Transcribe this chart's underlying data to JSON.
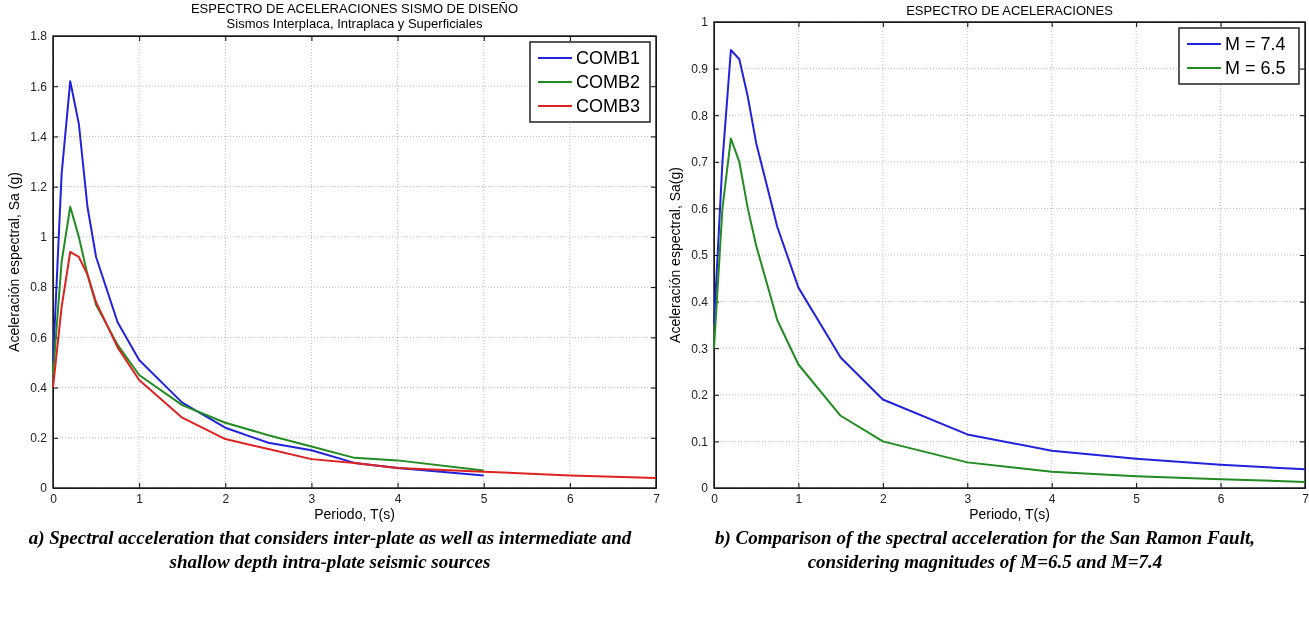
{
  "chart_data": [
    {
      "type": "line",
      "title": "ESPECTRO DE ACELERACIONES SISMO DE DISEÑO",
      "subtitle": "Sismos Interplaca, Intraplaca y Superficiales",
      "xlabel": "Periodo, T(s)",
      "ylabel": "Aceleración espectral, Sa (g)",
      "xlim": [
        0,
        7
      ],
      "xticks": [
        0,
        1,
        2,
        3,
        4,
        5,
        6,
        7
      ],
      "ylim": [
        0,
        1.8
      ],
      "yticks": [
        0,
        0.2,
        0.4,
        0.6,
        0.8,
        1,
        1.2,
        1.4,
        1.6,
        1.8
      ],
      "grid": true,
      "legend": "top right",
      "line_style": "solid",
      "annotations": [
        "a) Spectral acceleration that considers inter-plate as well as intermediate and shallow depth intra-plate seismic sources"
      ],
      "series": [
        {
          "name": "COMB1",
          "color": "#2222dd",
          "x": [
            0,
            0.1,
            0.2,
            0.3,
            0.4,
            0.5,
            0.75,
            1,
            1.5,
            2,
            2.5,
            3,
            3.5,
            4,
            5
          ],
          "values": [
            0.5,
            1.25,
            1.62,
            1.45,
            1.12,
            0.92,
            0.66,
            0.51,
            0.34,
            0.24,
            0.18,
            0.15,
            0.1,
            0.08,
            0.05
          ]
        },
        {
          "name": "COMB2",
          "color": "#228b22",
          "x": [
            0,
            0.1,
            0.2,
            0.3,
            0.4,
            0.5,
            0.75,
            1,
            1.5,
            2,
            2.5,
            3,
            3.5,
            4,
            5
          ],
          "values": [
            0.45,
            0.9,
            1.12,
            1.0,
            0.85,
            0.73,
            0.57,
            0.45,
            0.33,
            0.26,
            0.21,
            0.165,
            0.12,
            0.11,
            0.07
          ]
        },
        {
          "name": "COMB3",
          "color": "#dd2222",
          "x": [
            0,
            0.1,
            0.2,
            0.3,
            0.4,
            0.5,
            0.75,
            1,
            1.5,
            2,
            2.5,
            3,
            3.5,
            4,
            5,
            6,
            7
          ],
          "values": [
            0.4,
            0.72,
            0.94,
            0.92,
            0.85,
            0.74,
            0.56,
            0.43,
            0.28,
            0.195,
            0.155,
            0.115,
            0.1,
            0.08,
            0.065,
            0.05,
            0.04
          ]
        }
      ]
    },
    {
      "type": "line",
      "title": "ESPECTRO DE ACELERACIONES",
      "xlabel": "Periodo, T(s)",
      "ylabel": "Aceleración espectral, Sa(g)",
      "xlim": [
        0,
        7
      ],
      "xticks": [
        0,
        1,
        2,
        3,
        4,
        5,
        6,
        7
      ],
      "ylim": [
        0,
        1
      ],
      "yticks": [
        0,
        0.1,
        0.2,
        0.3,
        0.4,
        0.5,
        0.6,
        0.7,
        0.8,
        0.9,
        1
      ],
      "grid": true,
      "legend": "top right",
      "line_style": "solid",
      "annotations": [
        "b) Comparison of the spectral acceleration for the San Ramon Fault, considering magnitudes of M=6.5 and M=7.4"
      ],
      "series": [
        {
          "name": "M = 7.4",
          "color": "#2222dd",
          "x": [
            0,
            0.1,
            0.2,
            0.3,
            0.4,
            0.5,
            0.75,
            1,
            1.5,
            2,
            3,
            4,
            5,
            6,
            7
          ],
          "values": [
            0.35,
            0.7,
            0.94,
            0.92,
            0.84,
            0.74,
            0.56,
            0.43,
            0.28,
            0.19,
            0.115,
            0.08,
            0.063,
            0.05,
            0.04
          ]
        },
        {
          "name": "M = 6.5",
          "color": "#228b22",
          "x": [
            0,
            0.1,
            0.2,
            0.3,
            0.4,
            0.5,
            0.75,
            1,
            1.5,
            2,
            3,
            4,
            5,
            6,
            7
          ],
          "values": [
            0.3,
            0.6,
            0.75,
            0.7,
            0.6,
            0.52,
            0.36,
            0.265,
            0.155,
            0.1,
            0.055,
            0.035,
            0.025,
            0.019,
            0.013
          ]
        }
      ]
    }
  ]
}
